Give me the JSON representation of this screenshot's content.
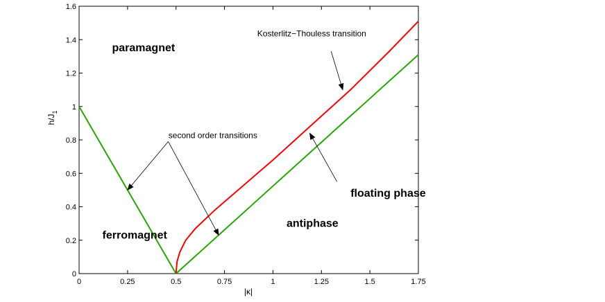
{
  "chart_data": {
    "type": "line",
    "xlabel": "|κ|",
    "ylabel": "h/J",
    "ylabel_subscript": "1",
    "xlim": [
      0,
      1.75
    ],
    "ylim": [
      0,
      1.6
    ],
    "x_ticks": [
      0,
      0.25,
      0.5,
      0.75,
      1,
      1.25,
      1.5,
      1.75
    ],
    "x_tick_labels": [
      "0",
      "0.25",
      "0.5",
      "0.75",
      "1",
      "1.25",
      "1.5",
      "1.75"
    ],
    "y_ticks": [
      0,
      0.2,
      0.4,
      0.6,
      0.8,
      1,
      1.2,
      1.4,
      1.6
    ],
    "y_tick_labels": [
      "0",
      "0.2",
      "0.4",
      "0.6",
      "0.8",
      "1",
      "1.2",
      "1.4",
      "1.6"
    ],
    "grid": false,
    "series": [
      {
        "color": "#22aa00",
        "x": [
          0,
          0.5
        ],
        "y": [
          1,
          0
        ]
      },
      {
        "color": "#22aa00",
        "x": [
          0.5,
          1.75
        ],
        "y": [
          0,
          1.31
        ]
      },
      {
        "color": "#ff0000",
        "x": [
          0.5,
          0.505,
          0.52,
          0.55,
          0.6,
          0.7,
          0.8,
          1.0,
          1.2,
          1.4,
          1.6,
          1.75
        ],
        "y": [
          0,
          0.07,
          0.13,
          0.2,
          0.27,
          0.38,
          0.48,
          0.68,
          0.89,
          1.1,
          1.33,
          1.51
        ]
      }
    ],
    "regions": [
      {
        "label": "paramagnet",
        "x": 0.17,
        "y": 1.33
      },
      {
        "label": "ferromagnet",
        "x": 0.12,
        "y": 0.21
      },
      {
        "label": "antiphase",
        "x": 1.07,
        "y": 0.28
      },
      {
        "label": "floating phase",
        "x": 1.4,
        "y": 0.46
      }
    ],
    "annotations": [
      {
        "text": "Kosterlitz−Thouless transition",
        "tx": 1.2,
        "ty": 1.42,
        "arrows": [
          {
            "from": [
              1.3,
              1.33
            ],
            "to": [
              1.36,
              1.1
            ]
          }
        ]
      },
      {
        "text": "second order transitions",
        "tx": 0.69,
        "ty": 0.81,
        "arrows": [
          {
            "from": [
              0.46,
              0.79
            ],
            "to": [
              0.25,
              0.5
            ]
          },
          {
            "from": [
              0.46,
              0.79
            ],
            "to": [
              0.72,
              0.23
            ]
          }
        ]
      },
      {
        "text": "",
        "tx": 0,
        "ty": 0,
        "arrows": [
          {
            "from": [
              1.33,
              0.55
            ],
            "to": [
              1.19,
              0.84
            ]
          }
        ]
      }
    ]
  }
}
